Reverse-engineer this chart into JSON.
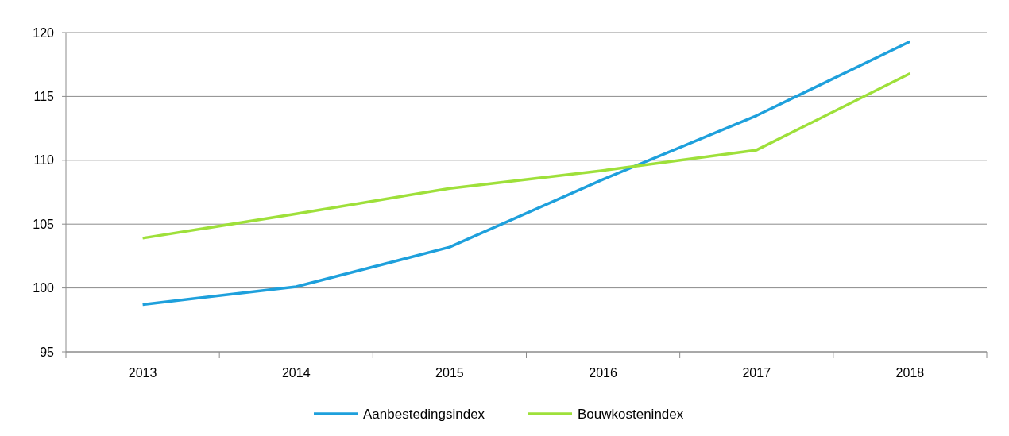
{
  "chart_data": {
    "type": "line",
    "categories": [
      "2013",
      "2014",
      "2015",
      "2016",
      "2017",
      "2018"
    ],
    "series": [
      {
        "name": "Aanbestedingsindex",
        "color": "#1ea0dc",
        "values": [
          98.7,
          100.1,
          103.2,
          108.5,
          113.5,
          119.3
        ]
      },
      {
        "name": "Bouwkostenindex",
        "color": "#9ee03a",
        "values": [
          103.9,
          105.8,
          107.8,
          109.2,
          110.8,
          116.8
        ]
      }
    ],
    "ylim": [
      95,
      120
    ],
    "yticks": [
      95,
      100,
      105,
      110,
      115,
      120
    ],
    "grid": "y",
    "legend": "bottom",
    "marker": "none",
    "line_style": "solid"
  }
}
